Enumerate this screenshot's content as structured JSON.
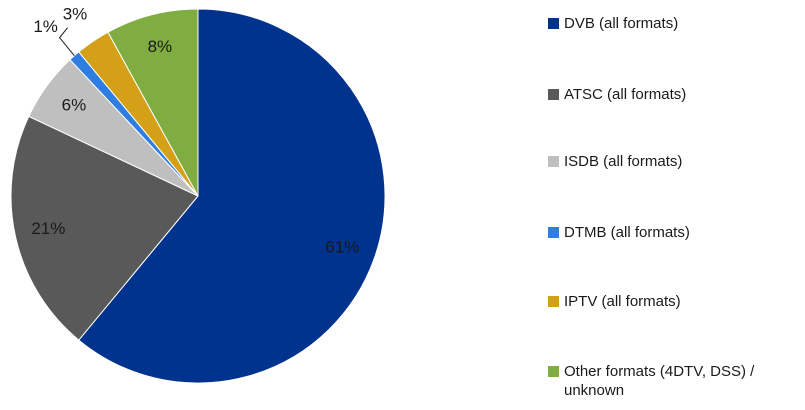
{
  "chart_data": {
    "type": "pie",
    "categories": [
      "DVB (all formats)",
      "ATSC (all formats)",
      "ISDB (all formats)",
      "DTMB (all formats)",
      "IPTV (all formats)",
      "Other formats (4DTV, DSS) / unknown"
    ],
    "values": [
      61,
      21,
      6,
      1,
      3,
      8
    ],
    "value_labels": [
      "61%",
      "21%",
      "6%",
      "1%",
      "3%",
      "8%"
    ],
    "colors": [
      "#00338d",
      "#595959",
      "#bfbfbf",
      "#2e7de1",
      "#d4a017",
      "#7fad41"
    ],
    "legend": "right"
  }
}
